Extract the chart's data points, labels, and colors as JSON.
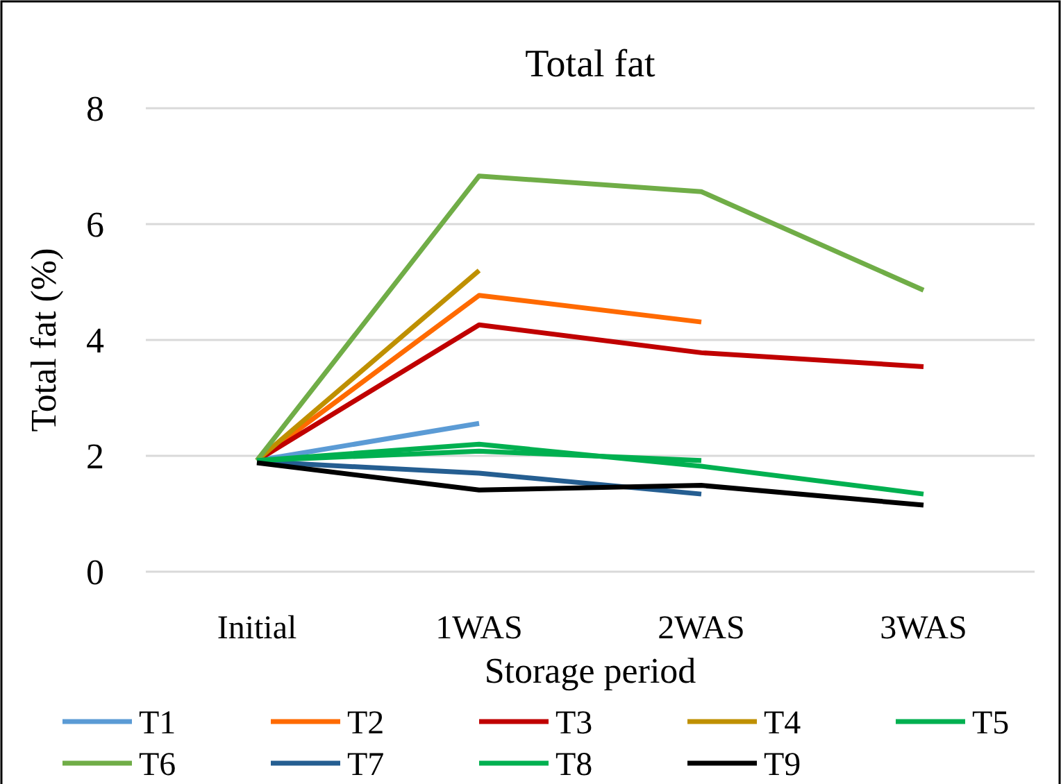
{
  "chart_data": {
    "type": "line",
    "title": "Total fat",
    "xlabel": "Storage period",
    "ylabel": "Total fat (%)",
    "categories": [
      "Initial",
      "1WAS",
      "2WAS",
      "3WAS"
    ],
    "series": [
      {
        "name": "T1",
        "color": "#5b9bd5",
        "values": [
          1.92,
          2.56,
          null,
          null
        ]
      },
      {
        "name": "T2",
        "color": "#ff6a00",
        "values": [
          1.92,
          4.77,
          4.31,
          null
        ]
      },
      {
        "name": "T3",
        "color": "#c00000",
        "values": [
          1.92,
          4.26,
          3.78,
          3.54
        ]
      },
      {
        "name": "T4",
        "color": "#bf9000",
        "values": [
          1.92,
          5.2,
          null,
          null
        ]
      },
      {
        "name": "T5",
        "color": "#00b050",
        "values": [
          1.92,
          2.2,
          1.82,
          1.34
        ]
      },
      {
        "name": "T6",
        "color": "#70ad47",
        "values": [
          1.92,
          6.83,
          6.56,
          4.86
        ]
      },
      {
        "name": "T7",
        "color": "#255e91",
        "values": [
          1.9,
          1.7,
          1.34,
          null
        ]
      },
      {
        "name": "T8",
        "color": "#00b050",
        "values": [
          1.92,
          2.08,
          1.92,
          null
        ]
      },
      {
        "name": "T9",
        "color": "#000000",
        "values": [
          1.88,
          1.41,
          1.49,
          1.15
        ]
      }
    ],
    "ylim": [
      0,
      8
    ],
    "yticks": [
      0,
      2,
      4,
      6,
      8
    ],
    "grid": "y",
    "legend": "bottom",
    "marker": "none",
    "line_style": "solid"
  }
}
